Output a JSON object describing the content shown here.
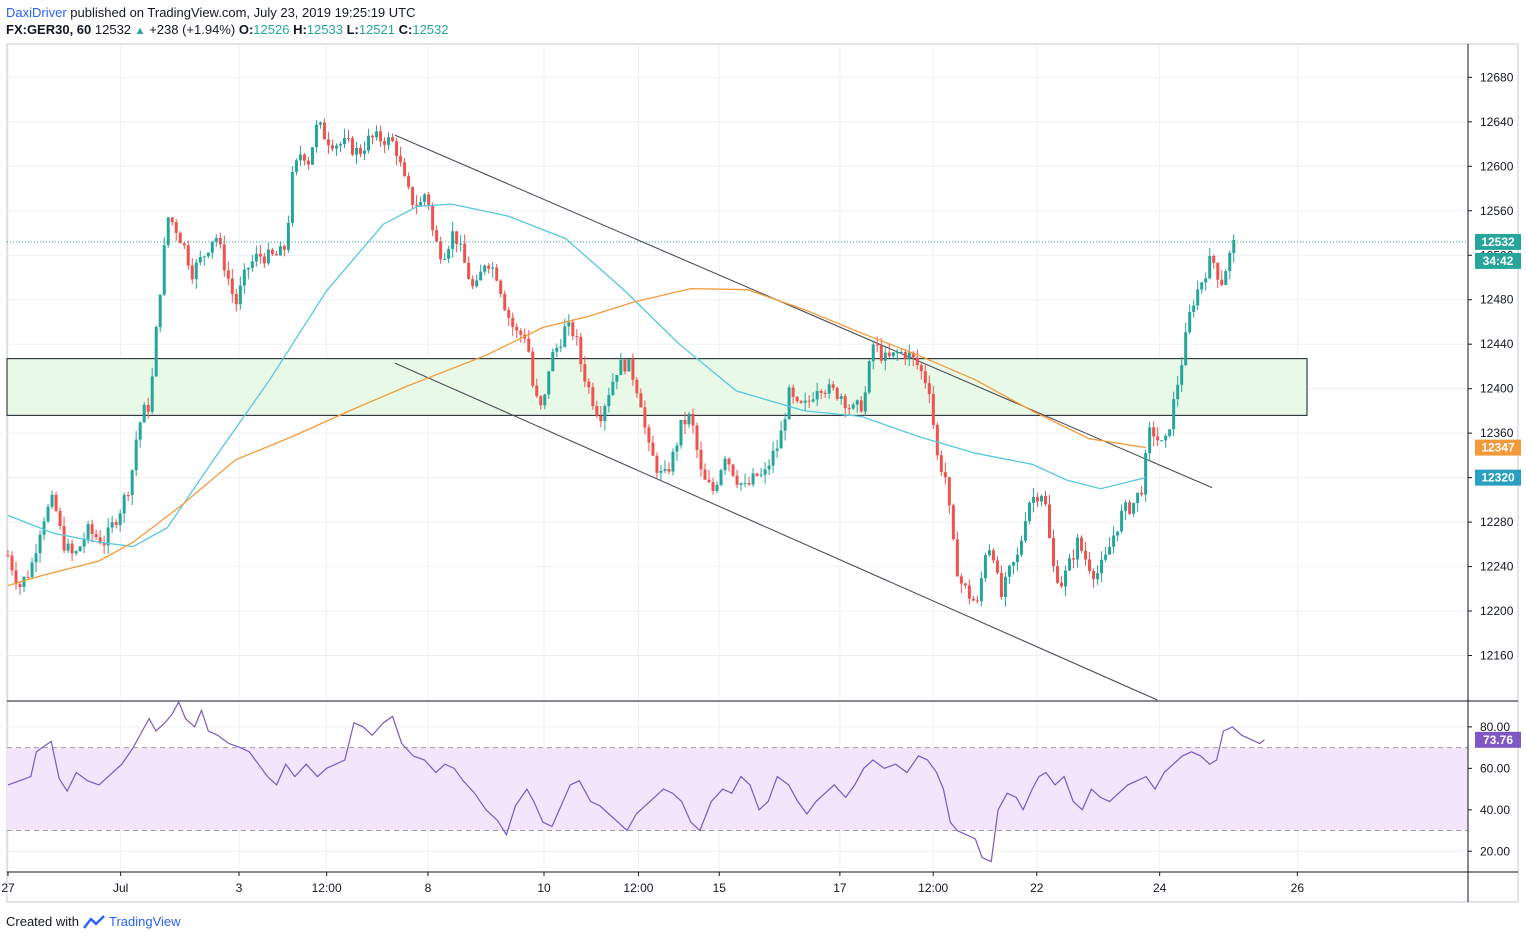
{
  "header": {
    "author": "DaxiDriver",
    "published_text": "published on TradingView.com, July 23, 2019 19:25:19 UTC",
    "symbol": "FX:GER30, 60",
    "last": "12532",
    "arrow": "▲",
    "change": "+238 (+1.94%)",
    "o_label": "O:",
    "o_value": "12526",
    "h_label": "H:",
    "h_value": "12533",
    "l_label": "L:",
    "l_value": "12521",
    "c_label": "C:",
    "c_value": "12532"
  },
  "footer": {
    "created_with": "Created with",
    "brand": "TradingView"
  },
  "colors": {
    "up": "#26a69a",
    "down": "#ef5350",
    "ma_fast": "#56c8e0",
    "ma_slow": "#f59a3a",
    "rsi": "#7e57c2",
    "rsi_band": "#f3e5fc",
    "zone": "#e8f9e8",
    "grid": "#eef0f3"
  },
  "chart_data": {
    "type": "candlestick",
    "title": "FX:GER30, 60",
    "price_axis": {
      "range": [
        12120,
        12710
      ],
      "ticks": [
        12160,
        12200,
        12240,
        12280,
        12320,
        12360,
        12400,
        12440,
        12480,
        12520,
        12560,
        12600,
        12640,
        12680
      ],
      "labels": [
        "12160",
        "12200",
        "12240",
        "12280",
        "12320",
        "12360",
        "12400",
        "12440",
        "12480",
        "12520",
        "12560",
        "12600",
        "12640",
        "12680"
      ]
    },
    "time_axis": {
      "labels": [
        "27",
        "Jul",
        "3",
        "12:00",
        "8",
        "10",
        "12:00",
        "15",
        "17",
        "12:00",
        "22",
        "24",
        "26"
      ],
      "positions": [
        0,
        99,
        203,
        280,
        369,
        471,
        554,
        625,
        731,
        813,
        904,
        1012,
        1133
      ]
    },
    "last_price": {
      "value": 12532,
      "label": "12532",
      "countdown": "34:42"
    },
    "ma_slow": {
      "name": "MA (orange)",
      "last": 12347,
      "label": "12347",
      "points": [
        [
          0,
          12223
        ],
        [
          30,
          12232
        ],
        [
          80,
          12245
        ],
        [
          110,
          12262
        ],
        [
          150,
          12293
        ],
        [
          200,
          12336
        ],
        [
          250,
          12357
        ],
        [
          300,
          12380
        ],
        [
          350,
          12402
        ],
        [
          420,
          12430
        ],
        [
          470,
          12455
        ],
        [
          510,
          12465
        ],
        [
          550,
          12478
        ],
        [
          600,
          12490
        ],
        [
          650,
          12489
        ],
        [
          700,
          12471
        ],
        [
          750,
          12450
        ],
        [
          800,
          12430
        ],
        [
          850,
          12408
        ],
        [
          900,
          12380
        ],
        [
          950,
          12355
        ],
        [
          1000,
          12347
        ]
      ]
    },
    "ma_fast": {
      "name": "MA (cyan)",
      "last": 12320,
      "label": "12320",
      "points": [
        [
          0,
          12286
        ],
        [
          40,
          12270
        ],
        [
          80,
          12262
        ],
        [
          110,
          12258
        ],
        [
          140,
          12275
        ],
        [
          180,
          12335
        ],
        [
          230,
          12408
        ],
        [
          280,
          12488
        ],
        [
          330,
          12548
        ],
        [
          360,
          12564
        ],
        [
          390,
          12566
        ],
        [
          440,
          12555
        ],
        [
          490,
          12535
        ],
        [
          540,
          12490
        ],
        [
          590,
          12440
        ],
        [
          640,
          12398
        ],
        [
          700,
          12380
        ],
        [
          750,
          12375
        ],
        [
          800,
          12357
        ],
        [
          850,
          12342
        ],
        [
          900,
          12332
        ],
        [
          930,
          12318
        ],
        [
          960,
          12310
        ],
        [
          1000,
          12320
        ]
      ]
    },
    "channel": {
      "upper": [
        [
          340,
          12628
        ],
        [
          1058,
          12311
        ]
      ],
      "lower": [
        [
          340,
          12423
        ],
        [
          1010,
          12120
        ]
      ]
    },
    "zone": {
      "from": 12376,
      "to": 12427
    },
    "candle_path": [
      [
        0,
        12250
      ],
      [
        10,
        12222
      ],
      [
        20,
        12238
      ],
      [
        30,
        12282
      ],
      [
        40,
        12300
      ],
      [
        48,
        12262
      ],
      [
        58,
        12248
      ],
      [
        70,
        12272
      ],
      [
        85,
        12262
      ],
      [
        100,
        12295
      ],
      [
        108,
        12318
      ],
      [
        112,
        12352
      ],
      [
        118,
        12378
      ],
      [
        124,
        12385
      ],
      [
        128,
        12420
      ],
      [
        132,
        12475
      ],
      [
        136,
        12510
      ],
      [
        140,
        12555
      ],
      [
        146,
        12548
      ],
      [
        154,
        12530
      ],
      [
        162,
        12505
      ],
      [
        172,
        12520
      ],
      [
        182,
        12540
      ],
      [
        192,
        12505
      ],
      [
        200,
        12475
      ],
      [
        210,
        12508
      ],
      [
        220,
        12520
      ],
      [
        230,
        12518
      ],
      [
        238,
        12520
      ],
      [
        244,
        12528
      ],
      [
        250,
        12590
      ],
      [
        258,
        12615
      ],
      [
        264,
        12605
      ],
      [
        272,
        12638
      ],
      [
        280,
        12625
      ],
      [
        290,
        12620
      ],
      [
        298,
        12620
      ],
      [
        308,
        12612
      ],
      [
        318,
        12625
      ],
      [
        330,
        12625
      ],
      [
        340,
        12620
      ],
      [
        350,
        12580
      ],
      [
        356,
        12568
      ],
      [
        362,
        12565
      ],
      [
        368,
        12580
      ],
      [
        374,
        12535
      ],
      [
        382,
        12520
      ],
      [
        392,
        12542
      ],
      [
        402,
        12510
      ],
      [
        410,
        12485
      ],
      [
        420,
        12518
      ],
      [
        430,
        12502
      ],
      [
        438,
        12470
      ],
      [
        446,
        12450
      ],
      [
        456,
        12448
      ],
      [
        462,
        12395
      ],
      [
        470,
        12378
      ],
      [
        476,
        12425
      ],
      [
        484,
        12440
      ],
      [
        490,
        12455
      ],
      [
        498,
        12450
      ],
      [
        504,
        12420
      ],
      [
        512,
        12395
      ],
      [
        520,
        12375
      ],
      [
        528,
        12398
      ],
      [
        536,
        12420
      ],
      [
        544,
        12423
      ],
      [
        550,
        12410
      ],
      [
        556,
        12390
      ],
      [
        562,
        12348
      ],
      [
        570,
        12330
      ],
      [
        576,
        12318
      ],
      [
        584,
        12338
      ],
      [
        592,
        12368
      ],
      [
        600,
        12375
      ],
      [
        610,
        12318
      ],
      [
        620,
        12308
      ],
      [
        630,
        12342
      ],
      [
        640,
        12320
      ],
      [
        648,
        12310
      ],
      [
        658,
        12322
      ],
      [
        664,
        12320
      ],
      [
        670,
        12336
      ],
      [
        678,
        12352
      ],
      [
        686,
        12395
      ],
      [
        694,
        12382
      ],
      [
        702,
        12385
      ],
      [
        712,
        12405
      ],
      [
        722,
        12398
      ],
      [
        732,
        12395
      ],
      [
        742,
        12380
      ],
      [
        752,
        12387
      ],
      [
        760,
        12440
      ],
      [
        772,
        12425
      ],
      [
        782,
        12432
      ],
      [
        790,
        12432
      ],
      [
        800,
        12420
      ],
      [
        810,
        12400
      ],
      [
        816,
        12340
      ],
      [
        824,
        12320
      ],
      [
        830,
        12262
      ],
      [
        836,
        12228
      ],
      [
        844,
        12215
      ],
      [
        852,
        12205
      ],
      [
        860,
        12262
      ],
      [
        866,
        12252
      ],
      [
        872,
        12210
      ],
      [
        880,
        12235
      ],
      [
        888,
        12250
      ],
      [
        896,
        12298
      ],
      [
        904,
        12305
      ],
      [
        910,
        12308
      ],
      [
        918,
        12240
      ],
      [
        926,
        12225
      ],
      [
        932,
        12240
      ],
      [
        940,
        12262
      ],
      [
        948,
        12245
      ],
      [
        956,
        12232
      ],
      [
        964,
        12245
      ],
      [
        972,
        12270
      ],
      [
        980,
        12290
      ],
      [
        988,
        12295
      ],
      [
        996,
        12310
      ],
      [
        1004,
        12365
      ],
      [
        1010,
        12355
      ],
      [
        1016,
        12345
      ],
      [
        1024,
        12385
      ],
      [
        1032,
        12428
      ],
      [
        1040,
        12475
      ],
      [
        1046,
        12490
      ],
      [
        1052,
        12505
      ],
      [
        1058,
        12518
      ],
      [
        1066,
        12495
      ],
      [
        1072,
        12515
      ],
      [
        1078,
        12532
      ]
    ],
    "rsi": {
      "name": "RSI",
      "last": 73.76,
      "label": "73.76",
      "range": [
        10,
        92
      ],
      "band": [
        30,
        70
      ],
      "ticks": [
        20,
        40,
        60,
        80
      ],
      "labels": [
        "20.00",
        "40.00",
        "60.00",
        "80.00"
      ],
      "points": [
        [
          0,
          52
        ],
        [
          10,
          54
        ],
        [
          20,
          56
        ],
        [
          25,
          68
        ],
        [
          30,
          70
        ],
        [
          38,
          73
        ],
        [
          45,
          55
        ],
        [
          52,
          49
        ],
        [
          60,
          58
        ],
        [
          70,
          54
        ],
        [
          80,
          52
        ],
        [
          90,
          57
        ],
        [
          100,
          62
        ],
        [
          110,
          70
        ],
        [
          118,
          78
        ],
        [
          124,
          84
        ],
        [
          130,
          78
        ],
        [
          138,
          82
        ],
        [
          144,
          86
        ],
        [
          150,
          92
        ],
        [
          156,
          84
        ],
        [
          164,
          80
        ],
        [
          170,
          88
        ],
        [
          176,
          78
        ],
        [
          184,
          76
        ],
        [
          194,
          72
        ],
        [
          204,
          70
        ],
        [
          212,
          68
        ],
        [
          220,
          62
        ],
        [
          228,
          56
        ],
        [
          236,
          52
        ],
        [
          244,
          62
        ],
        [
          252,
          56
        ],
        [
          262,
          62
        ],
        [
          272,
          56
        ],
        [
          280,
          60
        ],
        [
          288,
          62
        ],
        [
          296,
          64
        ],
        [
          304,
          82
        ],
        [
          312,
          80
        ],
        [
          320,
          76
        ],
        [
          330,
          82
        ],
        [
          338,
          85
        ],
        [
          346,
          72
        ],
        [
          356,
          66
        ],
        [
          366,
          64
        ],
        [
          376,
          58
        ],
        [
          384,
          62
        ],
        [
          392,
          60
        ],
        [
          400,
          54
        ],
        [
          410,
          48
        ],
        [
          420,
          40
        ],
        [
          430,
          35
        ],
        [
          438,
          28
        ],
        [
          446,
          42
        ],
        [
          456,
          50
        ],
        [
          462,
          44
        ],
        [
          470,
          34
        ],
        [
          478,
          32
        ],
        [
          486,
          42
        ],
        [
          494,
          52
        ],
        [
          502,
          54
        ],
        [
          512,
          44
        ],
        [
          520,
          42
        ],
        [
          528,
          38
        ],
        [
          536,
          34
        ],
        [
          544,
          30
        ],
        [
          552,
          38
        ],
        [
          560,
          42
        ],
        [
          568,
          46
        ],
        [
          576,
          50
        ],
        [
          584,
          48
        ],
        [
          592,
          44
        ],
        [
          600,
          34
        ],
        [
          608,
          30
        ],
        [
          618,
          44
        ],
        [
          628,
          50
        ],
        [
          636,
          48
        ],
        [
          644,
          56
        ],
        [
          652,
          52
        ],
        [
          660,
          40
        ],
        [
          668,
          44
        ],
        [
          676,
          56
        ],
        [
          686,
          52
        ],
        [
          694,
          44
        ],
        [
          702,
          38
        ],
        [
          710,
          44
        ],
        [
          718,
          48
        ],
        [
          726,
          52
        ],
        [
          736,
          46
        ],
        [
          744,
          52
        ],
        [
          752,
          60
        ],
        [
          760,
          64
        ],
        [
          770,
          60
        ],
        [
          780,
          62
        ],
        [
          790,
          58
        ],
        [
          800,
          66
        ],
        [
          808,
          64
        ],
        [
          816,
          58
        ],
        [
          822,
          50
        ],
        [
          828,
          34
        ],
        [
          834,
          30
        ],
        [
          842,
          28
        ],
        [
          850,
          26
        ],
        [
          856,
          17
        ],
        [
          864,
          15
        ],
        [
          870,
          40
        ],
        [
          878,
          48
        ],
        [
          886,
          46
        ],
        [
          892,
          40
        ],
        [
          900,
          50
        ],
        [
          906,
          56
        ],
        [
          912,
          58
        ],
        [
          920,
          52
        ],
        [
          928,
          56
        ],
        [
          936,
          44
        ],
        [
          944,
          40
        ],
        [
          952,
          50
        ],
        [
          960,
          46
        ],
        [
          968,
          44
        ],
        [
          976,
          48
        ],
        [
          984,
          52
        ],
        [
          992,
          54
        ],
        [
          1000,
          56
        ],
        [
          1008,
          50
        ],
        [
          1016,
          58
        ],
        [
          1024,
          62
        ],
        [
          1032,
          66
        ],
        [
          1040,
          68
        ],
        [
          1048,
          66
        ],
        [
          1056,
          62
        ],
        [
          1062,
          64
        ],
        [
          1068,
          78
        ],
        [
          1076,
          80
        ],
        [
          1084,
          76
        ],
        [
          1092,
          74
        ],
        [
          1100,
          72
        ],
        [
          1104,
          73.76
        ]
      ]
    }
  }
}
